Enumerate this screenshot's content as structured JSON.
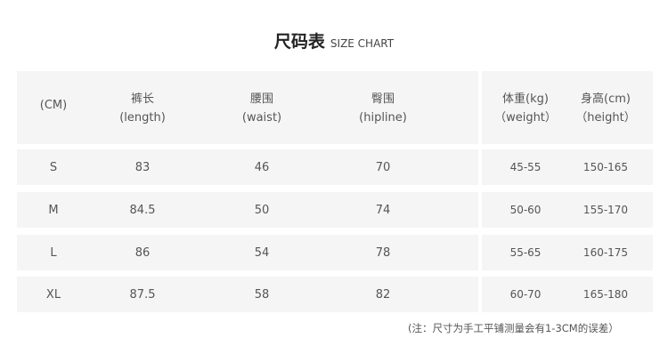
{
  "title": {
    "cn": "尺码表",
    "en": "SIZE CHART"
  },
  "headers": [
    {
      "l1": "(CM)",
      "l2": ""
    },
    {
      "l1": "裤长",
      "l2": "(length)"
    },
    {
      "l1": "腰围",
      "l2": "(waist)"
    },
    {
      "l1": "臀围",
      "l2": "(hipline)"
    },
    {
      "l1": "体重(kg)",
      "l2": "（weight）"
    },
    {
      "l1": "身高(cm)",
      "l2": "（height）"
    }
  ],
  "rows": [
    [
      "S",
      "83",
      "46",
      "70",
      "45-55",
      "150-165"
    ],
    [
      "M",
      "84.5",
      "50",
      "74",
      "50-60",
      "155-170"
    ],
    [
      "L",
      "86",
      "54",
      "78",
      "55-65",
      "160-175"
    ],
    [
      "XL",
      "87.5",
      "58",
      "82",
      "60-70",
      "165-180"
    ]
  ],
  "note": "(注：尺寸为手工平铺测量会有1-3CM的误差）",
  "colors": {
    "row_bg": "#f5f5f5"
  }
}
